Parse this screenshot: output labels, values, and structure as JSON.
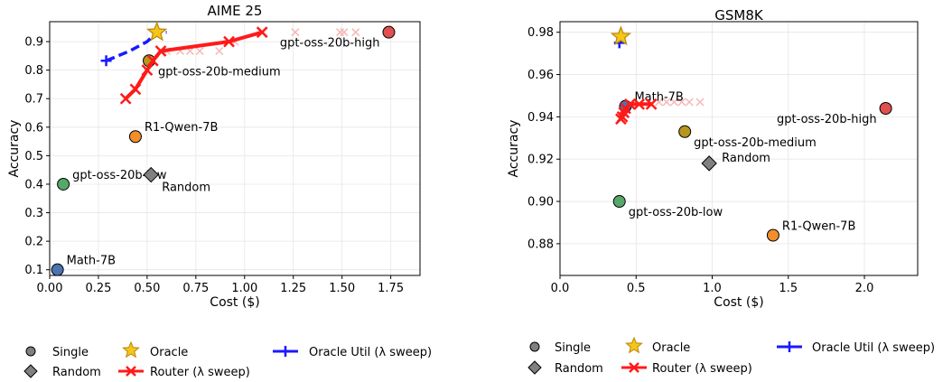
{
  "legend": {
    "left": {
      "single": "Single",
      "random": "Random",
      "oracle": "Oracle",
      "router": "Router (λ sweep)",
      "oracle_util": "Oracle Util (λ sweep)"
    },
    "right": {
      "single": "Single",
      "random": "Random",
      "oracle": "Oracle",
      "router": "Router (λ sweep)",
      "oracle_util": "Oracle Util (λ sweep)"
    }
  },
  "colors": {
    "router": "#ff1a1a",
    "router_faint": "#f7b6b6",
    "oracle_util": "#1a1aff",
    "oracle_star": "#f5c518",
    "random_diamond": "#808080",
    "single_legend": "#808080"
  },
  "chart_data": [
    {
      "type": "scatter",
      "title": "AIME 25",
      "xlabel": "Cost ($)",
      "ylabel": "Accuracy",
      "xlim": [
        0.0,
        1.9
      ],
      "ylim": [
        0.08,
        0.97
      ],
      "xticks": [
        "0.00",
        "0.25",
        "0.50",
        "0.75",
        "1.00",
        "1.25",
        "1.50",
        "1.75"
      ],
      "xtick_values": [
        0.0,
        0.25,
        0.5,
        0.75,
        1.0,
        1.25,
        1.5,
        1.75
      ],
      "yticks": [
        "0.1",
        "0.2",
        "0.3",
        "0.4",
        "0.5",
        "0.6",
        "0.7",
        "0.8",
        "0.9"
      ],
      "ytick_values": [
        0.1,
        0.2,
        0.3,
        0.4,
        0.5,
        0.6,
        0.7,
        0.8,
        0.9
      ],
      "grid": true,
      "models": [
        {
          "label": "Math-7B",
          "x": 0.04,
          "y": 0.1,
          "color": "#4c72b0",
          "label_pos": "upper-right"
        },
        {
          "label": "gpt-oss-20b-low",
          "x": 0.07,
          "y": 0.4,
          "color": "#55a868",
          "label_pos": "upper-right"
        },
        {
          "label": "R1-Qwen-7B",
          "x": 0.44,
          "y": 0.567,
          "color": "#f28e2b",
          "label_pos": "upper-right"
        },
        {
          "label": "gpt-oss-20b-medium",
          "x": 0.51,
          "y": 0.833,
          "color": "#b8961e",
          "label_pos": "lower-right"
        },
        {
          "label": "gpt-oss-20b-high",
          "x": 1.74,
          "y": 0.933,
          "color": "#e05050",
          "label_pos": "lower-left"
        }
      ],
      "random": {
        "label": "Random",
        "x": 0.52,
        "y": 0.433,
        "label_pos": "lower-right"
      },
      "oracle": {
        "x": 0.55,
        "y": 0.933
      },
      "router": {
        "points": [
          [
            0.39,
            0.7
          ],
          [
            0.44,
            0.733
          ],
          [
            0.5,
            0.8
          ],
          [
            0.53,
            0.833
          ],
          [
            0.57,
            0.867
          ],
          [
            0.92,
            0.9
          ],
          [
            1.09,
            0.933
          ]
        ],
        "faint_points": [
          [
            0.6,
            0.867
          ],
          [
            0.67,
            0.867
          ],
          [
            0.72,
            0.867
          ],
          [
            0.77,
            0.867
          ],
          [
            0.87,
            0.867
          ],
          [
            0.95,
            0.9
          ],
          [
            1.26,
            0.933
          ],
          [
            1.49,
            0.933
          ],
          [
            1.51,
            0.933
          ],
          [
            1.57,
            0.933
          ]
        ]
      },
      "oracle_util": {
        "points": [
          [
            0.29,
            0.833
          ],
          [
            0.41,
            0.867
          ],
          [
            0.5,
            0.9
          ],
          [
            0.55,
            0.933
          ],
          [
            0.6,
            0.933
          ]
        ]
      }
    },
    {
      "type": "scatter",
      "title": "GSM8K",
      "xlabel": "Cost ($)",
      "ylabel": "Accuracy",
      "xlim": [
        0.0,
        2.35
      ],
      "ylim": [
        0.865,
        0.985
      ],
      "xticks": [
        "0.0",
        "0.5",
        "1.0",
        "1.5",
        "2.0"
      ],
      "xtick_values": [
        0.0,
        0.5,
        1.0,
        1.5,
        2.0
      ],
      "yticks": [
        "0.88",
        "0.90",
        "0.92",
        "0.94",
        "0.96",
        "0.98"
      ],
      "ytick_values": [
        0.88,
        0.9,
        0.92,
        0.94,
        0.96,
        0.98
      ],
      "grid": true,
      "models": [
        {
          "label": "Math-7B",
          "x": 0.43,
          "y": 0.945,
          "color": "#4c72b0",
          "label_pos": "upper-right"
        },
        {
          "label": "gpt-oss-20b-low",
          "x": 0.39,
          "y": 0.9,
          "color": "#55a868",
          "label_pos": "lower-right"
        },
        {
          "label": "R1-Qwen-7B",
          "x": 1.4,
          "y": 0.884,
          "color": "#f28e2b",
          "label_pos": "upper-right"
        },
        {
          "label": "gpt-oss-20b-medium",
          "x": 0.82,
          "y": 0.933,
          "color": "#b8961e",
          "label_pos": "lower-right"
        },
        {
          "label": "gpt-oss-20b-high",
          "x": 2.14,
          "y": 0.944,
          "color": "#e05050",
          "label_pos": "lower-left"
        }
      ],
      "random": {
        "label": "Random",
        "x": 0.98,
        "y": 0.918,
        "label_pos": "upper-right"
      },
      "oracle": {
        "x": 0.4,
        "y": 0.978
      },
      "router": {
        "points": [
          [
            0.4,
            0.939
          ],
          [
            0.41,
            0.94
          ],
          [
            0.42,
            0.942
          ],
          [
            0.43,
            0.944
          ],
          [
            0.46,
            0.946
          ],
          [
            0.52,
            0.946
          ],
          [
            0.6,
            0.946
          ]
        ],
        "faint_points": [
          [
            0.65,
            0.947
          ],
          [
            0.7,
            0.947
          ],
          [
            0.75,
            0.947
          ],
          [
            0.8,
            0.947
          ],
          [
            0.85,
            0.947
          ],
          [
            0.92,
            0.947
          ]
        ]
      },
      "oracle_util": {
        "points": [
          [
            0.39,
            0.975
          ],
          [
            0.4,
            0.977
          ],
          [
            0.42,
            0.978
          ],
          [
            0.45,
            0.978
          ]
        ]
      }
    }
  ]
}
